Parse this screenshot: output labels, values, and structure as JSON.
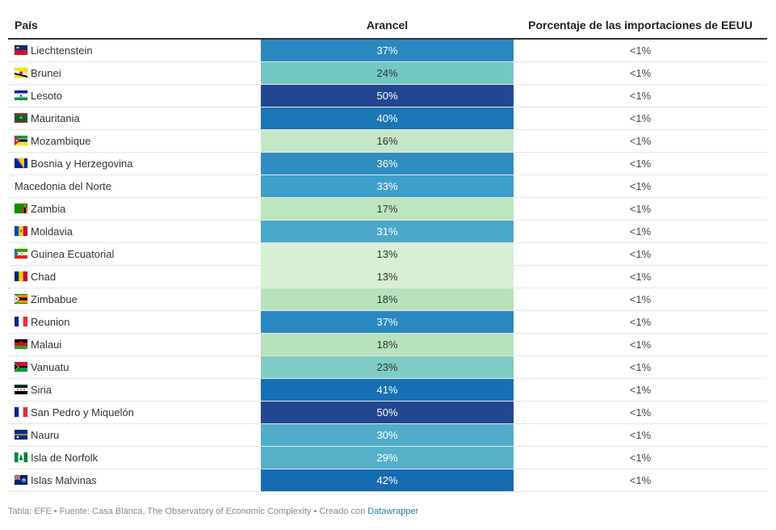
{
  "chart_data": {
    "type": "table",
    "columns": [
      "País",
      "Arancel",
      "Porcentaje de las importaciones de EEUU"
    ],
    "rows": [
      {
        "country": "Liechtenstein",
        "tariff": "37%",
        "tariff_value": 37,
        "share": "<1%",
        "flag": "liechtenstein-flag"
      },
      {
        "country": "Brunei",
        "tariff": "24%",
        "tariff_value": 24,
        "share": "<1%",
        "flag": "brunei-flag"
      },
      {
        "country": "Lesoto",
        "tariff": "50%",
        "tariff_value": 50,
        "share": "<1%",
        "flag": "lesotho-flag"
      },
      {
        "country": "Mauritania",
        "tariff": "40%",
        "tariff_value": 40,
        "share": "<1%",
        "flag": "mauritania-flag"
      },
      {
        "country": "Mozambique",
        "tariff": "16%",
        "tariff_value": 16,
        "share": "<1%",
        "flag": "mozambique-flag"
      },
      {
        "country": "Bosnia y Herzegovina",
        "tariff": "36%",
        "tariff_value": 36,
        "share": "<1%",
        "flag": "bosnia-flag"
      },
      {
        "country": "Macedonia del Norte",
        "tariff": "33%",
        "tariff_value": 33,
        "share": "<1%",
        "flag": null
      },
      {
        "country": "Zambia",
        "tariff": "17%",
        "tariff_value": 17,
        "share": "<1%",
        "flag": "zambia-flag"
      },
      {
        "country": "Moldavia",
        "tariff": "31%",
        "tariff_value": 31,
        "share": "<1%",
        "flag": "moldova-flag"
      },
      {
        "country": "Guinea Ecuatorial",
        "tariff": "13%",
        "tariff_value": 13,
        "share": "<1%",
        "flag": "equatorial-guinea-flag"
      },
      {
        "country": "Chad",
        "tariff": "13%",
        "tariff_value": 13,
        "share": "<1%",
        "flag": "chad-flag"
      },
      {
        "country": "Zimbabue",
        "tariff": "18%",
        "tariff_value": 18,
        "share": "<1%",
        "flag": "zimbabwe-flag"
      },
      {
        "country": "Reunion",
        "tariff": "37%",
        "tariff_value": 37,
        "share": "<1%",
        "flag": "reunion-flag"
      },
      {
        "country": "Malaui",
        "tariff": "18%",
        "tariff_value": 18,
        "share": "<1%",
        "flag": "malawi-flag"
      },
      {
        "country": "Vanuatu",
        "tariff": "23%",
        "tariff_value": 23,
        "share": "<1%",
        "flag": "vanuatu-flag"
      },
      {
        "country": "Siria",
        "tariff": "41%",
        "tariff_value": 41,
        "share": "<1%",
        "flag": "syria-flag"
      },
      {
        "country": "San Pedro y Miquelón",
        "tariff": "50%",
        "tariff_value": 50,
        "share": "<1%",
        "flag": "saint-pierre-flag"
      },
      {
        "country": "Nauru",
        "tariff": "30%",
        "tariff_value": 30,
        "share": "<1%",
        "flag": "nauru-flag"
      },
      {
        "country": "Isla de Norfolk",
        "tariff": "29%",
        "tariff_value": 29,
        "share": "<1%",
        "flag": "norfolk-flag"
      },
      {
        "country": "Islas Malvinas",
        "tariff": "42%",
        "tariff_value": 42,
        "share": "<1%",
        "flag": "falklands-flag"
      }
    ],
    "color_scale": {
      "stops": [
        {
          "value": 13,
          "color": "#d7efd2"
        },
        {
          "value": 18,
          "color": "#b7e2bc"
        },
        {
          "value": 24,
          "color": "#73c7c4"
        },
        {
          "value": 33,
          "color": "#3f9fcb"
        },
        {
          "value": 41,
          "color": "#1670b3"
        },
        {
          "value": 50,
          "color": "#234690"
        }
      ],
      "light_text": "#333333",
      "dark_text": "#ffffff"
    }
  },
  "footer": {
    "text": "Tabla: EFE • Fuente: Casa Blanca, The Observatory of Economic Complexity • Creado con ",
    "link": "Datawrapper",
    "link_color": "#1d81a2"
  }
}
